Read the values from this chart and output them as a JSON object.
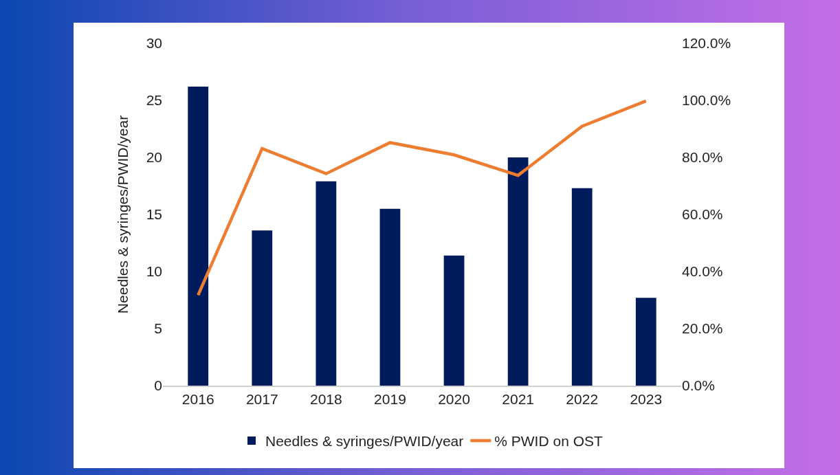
{
  "chart_data": {
    "type": "bar",
    "categories": [
      "2016",
      "2017",
      "2018",
      "2019",
      "2020",
      "2021",
      "2022",
      "2023"
    ],
    "ylabel": "Needles & syringes/PWID/year",
    "ylim": [
      0,
      30
    ],
    "yticks": [
      0,
      5,
      10,
      15,
      20,
      25,
      30
    ],
    "y2lim": [
      0,
      120
    ],
    "y2ticks": [
      {
        "value": 0,
        "label": "0.0%"
      },
      {
        "value": 20,
        "label": "20.0%"
      },
      {
        "value": 40,
        "label": "40.0%"
      },
      {
        "value": 60,
        "label": "60.0%"
      },
      {
        "value": 80,
        "label": "80.0%"
      },
      {
        "value": 100,
        "label": "100.0%"
      },
      {
        "value": 120,
        "label": "120.0%"
      }
    ],
    "series": [
      {
        "name": "Needles & syringes/PWID/year",
        "color": "#001c5c",
        "values": [
          26.2,
          13.6,
          17.9,
          15.5,
          11.4,
          20.0,
          17.3,
          7.7
        ]
      },
      {
        "name": "% PWID on OST",
        "type": "line",
        "axis": "y2",
        "color": "#ed7d31",
        "values": [
          31.7,
          83.1,
          74.3,
          85.2,
          80.9,
          73.7,
          90.9,
          99.8
        ]
      }
    ],
    "grid": false,
    "legend": "bottom",
    "marker": "none"
  }
}
